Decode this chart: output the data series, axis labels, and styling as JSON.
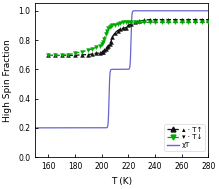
{
  "title": "",
  "xlabel": "T (K)",
  "ylabel": "High Spin Fraction",
  "xlim": [
    150,
    280
  ],
  "ylim": [
    0.0,
    1.05
  ],
  "yticks": [
    0.0,
    0.2,
    0.4,
    0.6,
    0.8,
    1.0
  ],
  "xticks": [
    160,
    180,
    200,
    220,
    240,
    260,
    280
  ],
  "T_up_x": [
    160,
    165,
    170,
    175,
    180,
    185,
    190,
    193,
    196,
    199,
    200,
    201,
    202,
    203,
    204,
    205,
    206,
    207,
    208,
    210,
    212,
    214,
    216,
    218,
    220,
    222,
    225,
    228,
    232,
    236,
    240,
    245,
    250,
    255,
    260,
    265,
    270,
    275,
    280
  ],
  "T_up_y": [
    0.695,
    0.695,
    0.695,
    0.695,
    0.695,
    0.7,
    0.7,
    0.705,
    0.71,
    0.71,
    0.715,
    0.72,
    0.73,
    0.74,
    0.75,
    0.76,
    0.775,
    0.79,
    0.82,
    0.85,
    0.865,
    0.875,
    0.88,
    0.885,
    0.9,
    0.91,
    0.92,
    0.93,
    0.935,
    0.94,
    0.94,
    0.94,
    0.94,
    0.94,
    0.94,
    0.94,
    0.94,
    0.94,
    0.94
  ],
  "T_dn_x": [
    160,
    165,
    170,
    175,
    180,
    185,
    190,
    193,
    196,
    199,
    200,
    201,
    202,
    203,
    204,
    205,
    206,
    207,
    208,
    210,
    212,
    214,
    216,
    218,
    220,
    222,
    225,
    228,
    232,
    236,
    240,
    245,
    250,
    255,
    260,
    265,
    270,
    275,
    280
  ],
  "T_dn_y": [
    0.695,
    0.695,
    0.695,
    0.7,
    0.71,
    0.72,
    0.73,
    0.74,
    0.75,
    0.76,
    0.77,
    0.79,
    0.81,
    0.84,
    0.865,
    0.88,
    0.89,
    0.895,
    0.9,
    0.905,
    0.91,
    0.915,
    0.92,
    0.92,
    0.92,
    0.92,
    0.92,
    0.92,
    0.92,
    0.92,
    0.92,
    0.92,
    0.92,
    0.92,
    0.92,
    0.92,
    0.92,
    0.92,
    0.92
  ],
  "chi_color": "#6666cc",
  "T_up_color": "#111111",
  "T_dn_color": "#00aa00",
  "bg_color": "#ffffff"
}
